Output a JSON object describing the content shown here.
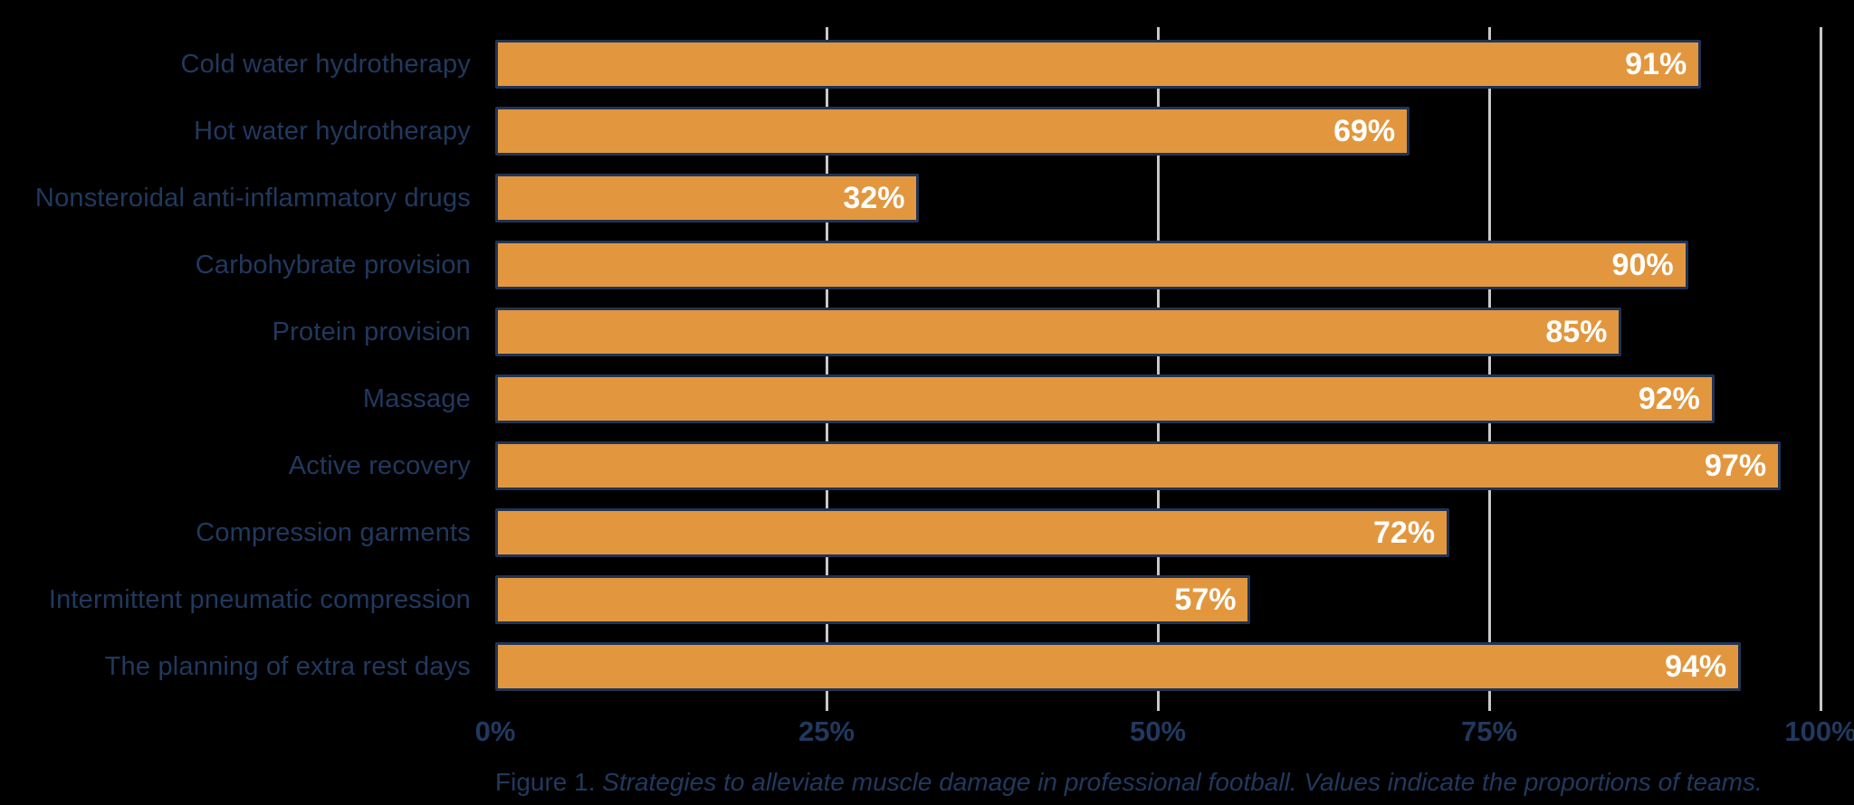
{
  "chart_data": {
    "type": "bar",
    "orientation": "horizontal",
    "categories": [
      "Cold water hydrotherapy",
      "Hot water hydrotherapy",
      "Nonsteroidal anti-inflammatory drugs",
      "Carbohybrate provision",
      "Protein provision",
      "Massage",
      "Active recovery",
      "Compression garments",
      "Intermittent pneumatic compression",
      "The planning of extra rest days"
    ],
    "values": [
      91,
      69,
      32,
      90,
      85,
      92,
      97,
      72,
      57,
      94
    ],
    "value_suffix": "%",
    "xlim": [
      0,
      100
    ],
    "xticks": [
      0,
      25,
      50,
      75,
      100
    ],
    "xtick_labels": [
      "0%",
      "25%",
      "50%",
      "75%",
      "100%"
    ],
    "gridlines_at": [
      25,
      50,
      75,
      100
    ],
    "grid": "vertical-only",
    "legend": "none",
    "title": "",
    "caption_prefix": "Figure 1. ",
    "caption_italic": "Strategies to alleviate muscle damage in professional football. Values indicate the proportions of teams.",
    "colors": {
      "background": "#000000",
      "bar_fill": "#E2973E",
      "bar_border": "#203455",
      "label_text": "#21395E",
      "value_text": "#FFFFFF",
      "gridline": "#C8C8C8"
    }
  }
}
